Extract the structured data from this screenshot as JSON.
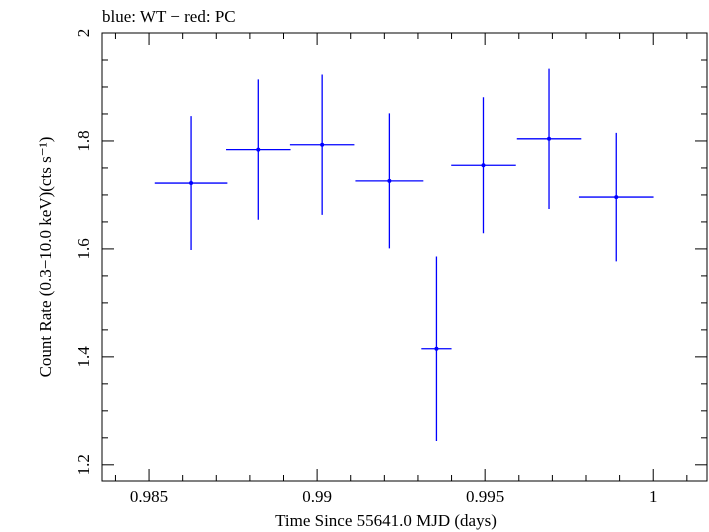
{
  "chart_data": {
    "type": "scatter",
    "title": "blue: WT − red: PC",
    "xlabel": "Time Since 55641.0 MJD (days)",
    "ylabel": "Count Rate (0.3−10.0 keV)(cts s⁻¹)",
    "xlim": [
      0.9836,
      1.0016
    ],
    "ylim": [
      1.17,
      2.0
    ],
    "xticks": [
      0.985,
      0.99,
      0.995,
      1.0
    ],
    "xtick_labels": [
      "0.985",
      "0.99",
      "0.995",
      "1"
    ],
    "yticks": [
      1.2,
      1.4,
      1.6,
      1.8,
      2.0
    ],
    "ytick_labels": [
      "1.2",
      "1.4",
      "1.6",
      "1.8",
      "2"
    ],
    "series": [
      {
        "color": "#0000ff",
        "points": [
          {
            "x": 0.98625,
            "xerr": 0.00108,
            "y": 1.722,
            "yerr": 0.124
          },
          {
            "x": 0.98825,
            "xerr": 0.00096,
            "y": 1.784,
            "yerr": 0.13
          },
          {
            "x": 0.99015,
            "xerr": 0.00096,
            "y": 1.793,
            "yerr": 0.13
          },
          {
            "x": 0.99215,
            "xerr": 0.00101,
            "y": 1.726,
            "yerr": 0.125
          },
          {
            "x": 0.99355,
            "xerr": 0.00045,
            "y": 1.415,
            "yerr": 0.171
          },
          {
            "x": 0.99495,
            "xerr": 0.00096,
            "y": 1.755,
            "yerr": 0.126
          },
          {
            "x": 0.9969,
            "xerr": 0.00096,
            "y": 1.804,
            "yerr": 0.13
          },
          {
            "x": 0.9989,
            "xerr": 0.00111,
            "y": 1.696,
            "yerr": 0.119
          }
        ]
      }
    ]
  }
}
